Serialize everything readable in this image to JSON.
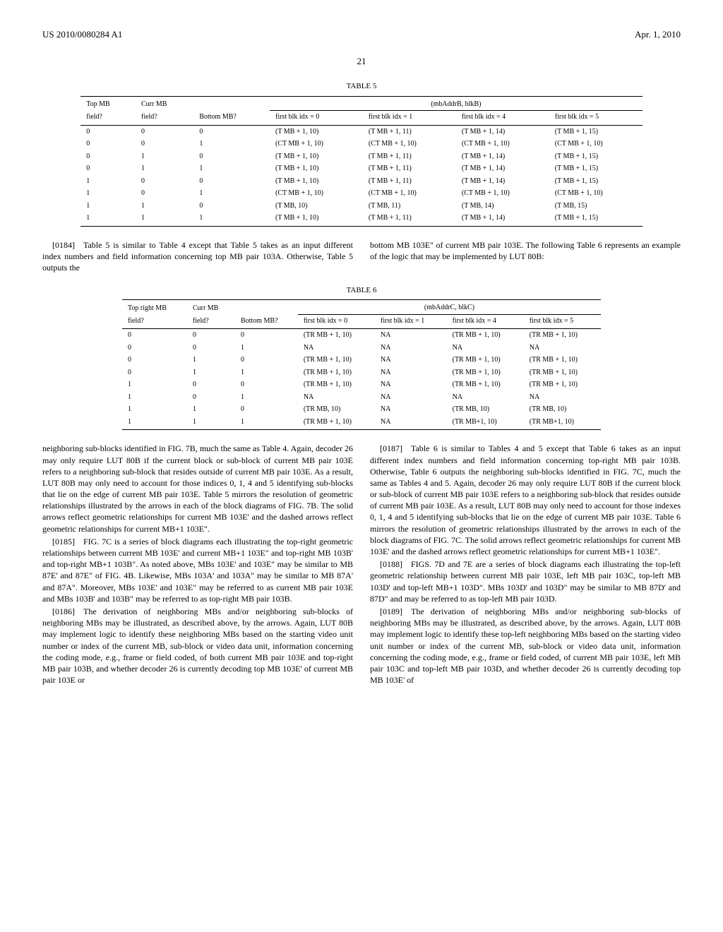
{
  "header": {
    "left": "US 2010/0080284 A1",
    "right": "Apr. 1, 2010"
  },
  "page_number": "21",
  "table5": {
    "title": "TABLE 5",
    "columns_row1": [
      "Top MB",
      "Curr MB",
      "",
      "(mbAddrB, blkB)",
      "",
      "",
      ""
    ],
    "columns_row2": [
      "field?",
      "field?",
      "Bottom MB?",
      "first blk idx = 0",
      "first blk idx = 1",
      "first blk idx = 4",
      "first blk idx = 5"
    ],
    "rows": [
      [
        "0",
        "0",
        "0",
        "(T MB + 1, 10)",
        "(T MB + 1, 11)",
        "(T MB + 1, 14)",
        "(T MB + 1, 15)"
      ],
      [
        "0",
        "0",
        "1",
        "(CT MB + 1, 10)",
        "(CT MB + 1, 10)",
        "(CT MB + 1, 10)",
        "(CT MB + 1, 10)"
      ],
      [
        "0",
        "1",
        "0",
        "(T MB + 1, 10)",
        "(T MB + 1, 11)",
        "(T MB + 1, 14)",
        "(T MB + 1, 15)"
      ],
      [
        "0",
        "1",
        "1",
        "(T MB + 1, 10)",
        "(T MB + 1, 11)",
        "(T MB + 1, 14)",
        "(T MB + 1, 15)"
      ],
      [
        "1",
        "0",
        "0",
        "(T MB + 1, 10)",
        "(T MB + 1, 11)",
        "(T MB + 1, 14)",
        "(T MB + 1, 15)"
      ],
      [
        "1",
        "0",
        "1",
        "(CT MB + 1, 10)",
        "(CT MB + 1, 10)",
        "(CT MB + 1, 10)",
        "(CT MB + 1, 10)"
      ],
      [
        "1",
        "1",
        "0",
        "(T MB, 10)",
        "(T MB, 11)",
        "(T MB, 14)",
        "(T MB, 15)"
      ],
      [
        "1",
        "1",
        "1",
        "(T MB + 1, 10)",
        "(T MB + 1, 11)",
        "(T MB + 1, 14)",
        "(T MB + 1, 15)"
      ]
    ]
  },
  "intro_left": "[0184] Table 5 is similar to Table 4 except that Table 5 takes as an input different index numbers and field information concerning top MB pair 103A. Otherwise, Table 5 outputs the",
  "intro_right": "bottom MB 103E\" of current MB pair 103E. The following Table 6 represents an example of the logic that may be implemented by LUT 80B:",
  "table6": {
    "title": "TABLE 6",
    "columns_row1": [
      "Top right MB",
      "Curr MB",
      "",
      "(mbAddrC, blkC)",
      "",
      "",
      ""
    ],
    "columns_row2": [
      "field?",
      "field?",
      "Bottom MB?",
      "first blk idx = 0",
      "first blk idx = 1",
      "first blk idx = 4",
      "first blk idx = 5"
    ],
    "rows": [
      [
        "0",
        "0",
        "0",
        "(TR MB + 1, 10)",
        "NA",
        "(TR MB + 1, 10)",
        "(TR MB + 1, 10)"
      ],
      [
        "0",
        "0",
        "1",
        "NA",
        "NA",
        "NA",
        "NA"
      ],
      [
        "0",
        "1",
        "0",
        "(TR MB + 1, 10)",
        "NA",
        "(TR MB + 1, 10)",
        "(TR MB + 1, 10)"
      ],
      [
        "0",
        "1",
        "1",
        "(TR MB + 1, 10)",
        "NA",
        "(TR MB + 1, 10)",
        "(TR MB + 1, 10)"
      ],
      [
        "1",
        "0",
        "0",
        "(TR MB + 1, 10)",
        "NA",
        "(TR MB + 1, 10)",
        "(TR MB + 1, 10)"
      ],
      [
        "1",
        "0",
        "1",
        "NA",
        "NA",
        "NA",
        "NA"
      ],
      [
        "1",
        "1",
        "0",
        "(TR MB, 10)",
        "NA",
        "(TR MB, 10)",
        "(TR MB, 10)"
      ],
      [
        "1",
        "1",
        "1",
        "(TR MB + 1, 10)",
        "NA",
        "(TR MB+1, 10)",
        "(TR MB+1, 10)"
      ]
    ]
  },
  "paragraphs_left": [
    "neighboring sub-blocks identified in FIG. 7B, much the same as Table 4. Again, decoder 26 may only require LUT 80B if the current block or sub-block of current MB pair 103E refers to a neighboring sub-block that resides outside of current MB pair 103E. As a result, LUT 80B may only need to account for those indices 0, 1, 4 and 5 identifying sub-blocks that lie on the edge of current MB pair 103E. Table 5 mirrors the resolution of geometric relationships illustrated by the arrows in each of the block diagrams of FIG. 7B. The solid arrows reflect geometric relationships for current MB 103E' and the dashed arrows reflect geometric relationships for current MB+1 103E\".",
    "[0185] FIG. 7C is a series of block diagrams each illustrating the top-right geometric relationships between current MB 103E' and current MB+1 103E\" and top-right MB 103B' and top-right MB+1 103B\". As noted above, MBs 103E' and 103E\" may be similar to MB 87E' and 87E\" of FIG. 4B. Likewise, MBs 103A' and 103A\" may be similar to MB 87A' and 87A\". Moreover, MBs 103E' and 103E\" may be referred to as current MB pair 103E and MBs 103B' and 103B\" may be referred to as top-right MB pair 103B.",
    "[0186] The derivation of neighboring MBs and/or neighboring sub-blocks of neighboring MBs may be illustrated, as described above, by the arrows. Again, LUT 80B may implement logic to identify these neighboring MBs based on the starting video unit number or index of the current MB, sub-block or video data unit, information concerning the coding mode, e.g., frame or field coded, of both current MB pair 103E and top-right MB pair 103B, and whether decoder 26 is currently decoding top MB 103E' of current MB pair 103E or"
  ],
  "paragraphs_right": [
    "[0187] Table 6 is similar to Tables 4 and 5 except that Table 6 takes as an input different index numbers and field information concerning top-right MB pair 103B. Otherwise, Table 6 outputs the neighboring sub-blocks identified in FIG. 7C, much the same as Tables 4 and 5. Again, decoder 26 may only require LUT 80B if the current block or sub-block of current MB pair 103E refers to a neighboring sub-block that resides outside of current MB pair 103E. As a result, LUT 80B may only need to account for those indexes 0, 1, 4 and 5 identifying sub-blocks that lie on the edge of current MB pair 103E. Table 6 mirrors the resolution of geometric relationships illustrated by the arrows in each of the block diagrams of FIG. 7C. The solid arrows reflect geometric relationships for current MB 103E' and the dashed arrows reflect geometric relationships for current MB+1 103E\".",
    "[0188] FIGS. 7D and 7E are a series of block diagrams each illustrating the top-left geometric relationship between current MB pair 103E, left MB pair 103C, top-left MB 103D' and top-left MB+1 103D\". MBs 103D' and 103D\" may be similar to MB 87D' and 87D\" and may be referred to as top-left MB pair 103D.",
    "[0189] The derivation of neighboring MBs and/or neighboring sub-blocks of neighboring MBs may be illustrated, as described above, by the arrows. Again, LUT 80B may implement logic to identify these top-left neighboring MBs based on the starting video unit number or index of the current MB, sub-block or video data unit, information concerning the coding mode, e.g., frame or field coded, of current MB pair 103E, left MB pair 103C and top-left MB pair 103D, and whether decoder 26 is currently decoding top MB 103E' of"
  ]
}
